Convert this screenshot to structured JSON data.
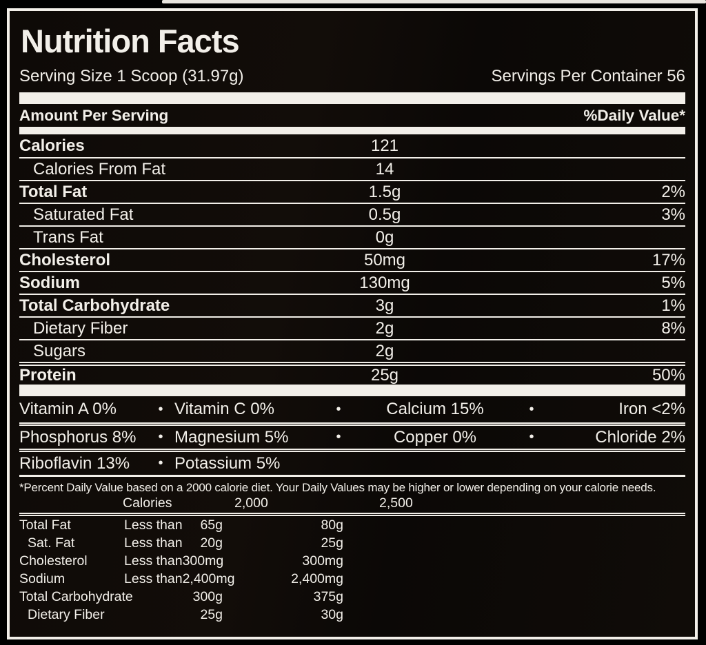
{
  "label": {
    "title": "Nutrition Facts",
    "serving_size": "Serving Size 1 Scoop (31.97g)",
    "servings_per_container": "Servings Per Container 56",
    "amount_per_serving": "Amount Per Serving",
    "daily_value_header": "%Daily Value*",
    "bullet": "•",
    "nutrients": [
      {
        "name": "Calories",
        "amount": "121",
        "dv": "",
        "bold": true,
        "indent": false,
        "sep": "none"
      },
      {
        "name": "Calories From Fat",
        "amount": "14",
        "dv": "",
        "bold": false,
        "indent": true,
        "sep": "single"
      },
      {
        "name": "Total Fat",
        "amount": "1.5g",
        "dv": "2%",
        "bold": true,
        "indent": false,
        "sep": "single"
      },
      {
        "name": "Saturated Fat",
        "amount": "0.5g",
        "dv": "3%",
        "bold": false,
        "indent": true,
        "sep": "single"
      },
      {
        "name": "Trans Fat",
        "amount": "0g",
        "dv": "",
        "bold": false,
        "indent": true,
        "sep": "single"
      },
      {
        "name": "Cholesterol",
        "amount": "50mg",
        "dv": "17%",
        "bold": true,
        "indent": false,
        "sep": "single"
      },
      {
        "name": "Sodium",
        "amount": "130mg",
        "dv": "5%",
        "bold": true,
        "indent": false,
        "sep": "single"
      },
      {
        "name": "Total Carbohydrate",
        "amount": "3g",
        "dv": "1%",
        "bold": true,
        "indent": false,
        "sep": "single"
      },
      {
        "name": "Dietary Fiber",
        "amount": "2g",
        "dv": "8%",
        "bold": false,
        "indent": true,
        "sep": "single"
      },
      {
        "name": "Sugars",
        "amount": "2g",
        "dv": "",
        "bold": false,
        "indent": true,
        "sep": "single"
      },
      {
        "name": "Protein",
        "amount": "25g",
        "dv": "50%",
        "bold": true,
        "indent": false,
        "sep": "double"
      }
    ],
    "micronutrient_rows": [
      [
        "Vitamin A 0%",
        "Vitamin C 0%",
        "Calcium 15%",
        "Iron <2%"
      ],
      [
        "Phosphorus 8%",
        "Magnesium 5%",
        "Copper 0%",
        "Chloride 2%"
      ],
      [
        "Riboflavin 13%",
        "Potassium 5%"
      ]
    ],
    "footnote": "*Percent Daily Value based on a 2000 calorie diet. Your Daily Values may be higher or lower depending on your calorie needs.",
    "dv_table": {
      "header": {
        "calories": "Calories",
        "col2000": "2,000",
        "col2500": "2,500"
      },
      "rows": [
        {
          "label": "Total Fat",
          "qualifier": "Less than",
          "v2000": "65g",
          "v2500": "80g",
          "indent": false
        },
        {
          "label": "Sat. Fat",
          "qualifier": "Less than",
          "v2000": "20g",
          "v2500": "25g",
          "indent": true
        },
        {
          "label": "Cholesterol",
          "qualifier": "Less than",
          "v2000": "300mg",
          "v2500": "300mg",
          "indent": false
        },
        {
          "label": "Sodium",
          "qualifier": "Less than",
          "v2000": "2,400mg",
          "v2500": "2,400mg",
          "indent": false
        },
        {
          "label": "Total Carbohydrate",
          "qualifier": "",
          "v2000": "300g",
          "v2500": "375g",
          "indent": false
        },
        {
          "label": "Dietary Fiber",
          "qualifier": "",
          "v2000": "25g",
          "v2500": "30g",
          "indent": true
        }
      ]
    },
    "colors": {
      "background": "#0e0a07",
      "text": "#f2efe9",
      "bar": "#f2efe9"
    }
  }
}
